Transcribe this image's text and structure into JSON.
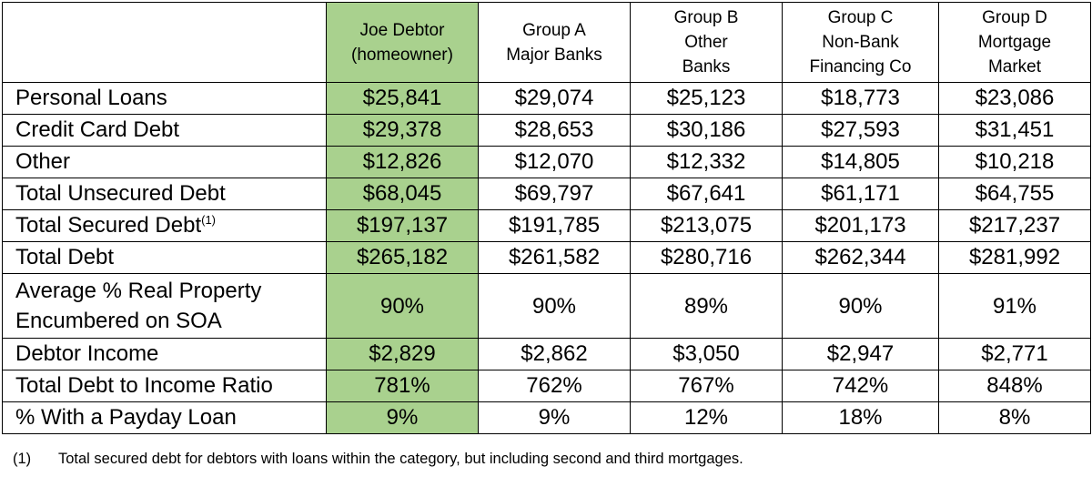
{
  "table": {
    "columns": [
      {
        "line1": "Joe Debtor",
        "line2": "(homeowner)",
        "line3": ""
      },
      {
        "line1": "Group A",
        "line2": "Major Banks",
        "line3": ""
      },
      {
        "line1": "Group B",
        "line2": "Other",
        "line3": "Banks"
      },
      {
        "line1": "Group C",
        "line2": "Non-Bank",
        "line3": "Financing Co"
      },
      {
        "line1": "Group D",
        "line2": "Mortgage",
        "line3": "Market"
      }
    ],
    "rows": [
      {
        "label": "Personal Loans",
        "values": [
          "$25,841",
          "$29,074",
          "$25,123",
          "$18,773",
          "$23,086"
        ]
      },
      {
        "label": "Credit Card Debt",
        "values": [
          "$29,378",
          "$28,653",
          "$30,186",
          "$27,593",
          "$31,451"
        ]
      },
      {
        "label": "Other",
        "values": [
          "$12,826",
          "$12,070",
          "$12,332",
          "$14,805",
          "$10,218"
        ]
      },
      {
        "label": "Total Unsecured Debt",
        "values": [
          "$68,045",
          "$69,797",
          "$67,641",
          "$61,171",
          "$64,755"
        ]
      },
      {
        "label": "Total Secured Debt",
        "label_sup": "(1)",
        "values": [
          "$197,137",
          "$191,785",
          "$213,075",
          "$201,173",
          "$217,237"
        ]
      },
      {
        "label": "Total Debt",
        "values": [
          "$265,182",
          "$261,582",
          "$280,716",
          "$262,344",
          "$281,992"
        ]
      },
      {
        "label_line1": "Average % Real Property",
        "label_line2": "Encumbered on SOA",
        "values": [
          "90%",
          "90%",
          "89%",
          "90%",
          "91%"
        ]
      },
      {
        "label": "Debtor Income",
        "values": [
          "$2,829",
          "$2,862",
          "$3,050",
          "$2,947",
          "$2,771"
        ]
      },
      {
        "label": "Total Debt to Income Ratio",
        "values": [
          "781%",
          "762%",
          "767%",
          "742%",
          "848%"
        ]
      },
      {
        "label": "% With a Payday Loan",
        "values": [
          "9%",
          "9%",
          "12%",
          "18%",
          "8%"
        ]
      }
    ]
  },
  "footnote": {
    "marker": "(1)",
    "text": "Total secured debt for debtors with loans within the category, but including second and third mortgages."
  },
  "colors": {
    "highlight": "#a9d18e",
    "border": "#000000"
  }
}
